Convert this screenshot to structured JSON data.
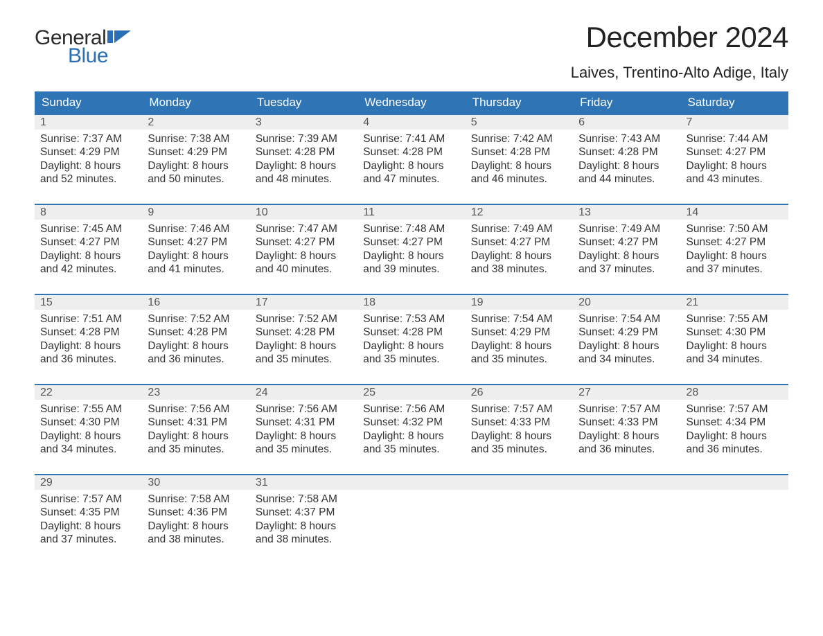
{
  "logo": {
    "text_general": "General",
    "text_blue": "Blue",
    "flag_color": "#2a6fb5"
  },
  "header": {
    "month_title": "December 2024",
    "location": "Laives, Trentino-Alto Adige, Italy"
  },
  "colors": {
    "header_bg": "#2f74b5",
    "header_text": "#ffffff",
    "daynum_bg": "#eeeeee",
    "daynum_border": "#2f74b5",
    "body_text": "#333333",
    "page_bg": "#ffffff"
  },
  "typography": {
    "month_title_fontsize": 42,
    "location_fontsize": 22,
    "header_fontsize": 17,
    "daynum_fontsize": 16,
    "body_fontsize": 15.5,
    "logo_fontsize": 30
  },
  "weekdays": [
    "Sunday",
    "Monday",
    "Tuesday",
    "Wednesday",
    "Thursday",
    "Friday",
    "Saturday"
  ],
  "labels": {
    "sunrise": "Sunrise:",
    "sunset": "Sunset:",
    "daylight": "Daylight:"
  },
  "weeks": [
    [
      {
        "day": "1",
        "sunrise": "7:37 AM",
        "sunset": "4:29 PM",
        "daylight1": "8 hours",
        "daylight2": "and 52 minutes."
      },
      {
        "day": "2",
        "sunrise": "7:38 AM",
        "sunset": "4:29 PM",
        "daylight1": "8 hours",
        "daylight2": "and 50 minutes."
      },
      {
        "day": "3",
        "sunrise": "7:39 AM",
        "sunset": "4:28 PM",
        "daylight1": "8 hours",
        "daylight2": "and 48 minutes."
      },
      {
        "day": "4",
        "sunrise": "7:41 AM",
        "sunset": "4:28 PM",
        "daylight1": "8 hours",
        "daylight2": "and 47 minutes."
      },
      {
        "day": "5",
        "sunrise": "7:42 AM",
        "sunset": "4:28 PM",
        "daylight1": "8 hours",
        "daylight2": "and 46 minutes."
      },
      {
        "day": "6",
        "sunrise": "7:43 AM",
        "sunset": "4:28 PM",
        "daylight1": "8 hours",
        "daylight2": "and 44 minutes."
      },
      {
        "day": "7",
        "sunrise": "7:44 AM",
        "sunset": "4:27 PM",
        "daylight1": "8 hours",
        "daylight2": "and 43 minutes."
      }
    ],
    [
      {
        "day": "8",
        "sunrise": "7:45 AM",
        "sunset": "4:27 PM",
        "daylight1": "8 hours",
        "daylight2": "and 42 minutes."
      },
      {
        "day": "9",
        "sunrise": "7:46 AM",
        "sunset": "4:27 PM",
        "daylight1": "8 hours",
        "daylight2": "and 41 minutes."
      },
      {
        "day": "10",
        "sunrise": "7:47 AM",
        "sunset": "4:27 PM",
        "daylight1": "8 hours",
        "daylight2": "and 40 minutes."
      },
      {
        "day": "11",
        "sunrise": "7:48 AM",
        "sunset": "4:27 PM",
        "daylight1": "8 hours",
        "daylight2": "and 39 minutes."
      },
      {
        "day": "12",
        "sunrise": "7:49 AM",
        "sunset": "4:27 PM",
        "daylight1": "8 hours",
        "daylight2": "and 38 minutes."
      },
      {
        "day": "13",
        "sunrise": "7:49 AM",
        "sunset": "4:27 PM",
        "daylight1": "8 hours",
        "daylight2": "and 37 minutes."
      },
      {
        "day": "14",
        "sunrise": "7:50 AM",
        "sunset": "4:27 PM",
        "daylight1": "8 hours",
        "daylight2": "and 37 minutes."
      }
    ],
    [
      {
        "day": "15",
        "sunrise": "7:51 AM",
        "sunset": "4:28 PM",
        "daylight1": "8 hours",
        "daylight2": "and 36 minutes."
      },
      {
        "day": "16",
        "sunrise": "7:52 AM",
        "sunset": "4:28 PM",
        "daylight1": "8 hours",
        "daylight2": "and 36 minutes."
      },
      {
        "day": "17",
        "sunrise": "7:52 AM",
        "sunset": "4:28 PM",
        "daylight1": "8 hours",
        "daylight2": "and 35 minutes."
      },
      {
        "day": "18",
        "sunrise": "7:53 AM",
        "sunset": "4:28 PM",
        "daylight1": "8 hours",
        "daylight2": "and 35 minutes."
      },
      {
        "day": "19",
        "sunrise": "7:54 AM",
        "sunset": "4:29 PM",
        "daylight1": "8 hours",
        "daylight2": "and 35 minutes."
      },
      {
        "day": "20",
        "sunrise": "7:54 AM",
        "sunset": "4:29 PM",
        "daylight1": "8 hours",
        "daylight2": "and 34 minutes."
      },
      {
        "day": "21",
        "sunrise": "7:55 AM",
        "sunset": "4:30 PM",
        "daylight1": "8 hours",
        "daylight2": "and 34 minutes."
      }
    ],
    [
      {
        "day": "22",
        "sunrise": "7:55 AM",
        "sunset": "4:30 PM",
        "daylight1": "8 hours",
        "daylight2": "and 34 minutes."
      },
      {
        "day": "23",
        "sunrise": "7:56 AM",
        "sunset": "4:31 PM",
        "daylight1": "8 hours",
        "daylight2": "and 35 minutes."
      },
      {
        "day": "24",
        "sunrise": "7:56 AM",
        "sunset": "4:31 PM",
        "daylight1": "8 hours",
        "daylight2": "and 35 minutes."
      },
      {
        "day": "25",
        "sunrise": "7:56 AM",
        "sunset": "4:32 PM",
        "daylight1": "8 hours",
        "daylight2": "and 35 minutes."
      },
      {
        "day": "26",
        "sunrise": "7:57 AM",
        "sunset": "4:33 PM",
        "daylight1": "8 hours",
        "daylight2": "and 35 minutes."
      },
      {
        "day": "27",
        "sunrise": "7:57 AM",
        "sunset": "4:33 PM",
        "daylight1": "8 hours",
        "daylight2": "and 36 minutes."
      },
      {
        "day": "28",
        "sunrise": "7:57 AM",
        "sunset": "4:34 PM",
        "daylight1": "8 hours",
        "daylight2": "and 36 minutes."
      }
    ],
    [
      {
        "day": "29",
        "sunrise": "7:57 AM",
        "sunset": "4:35 PM",
        "daylight1": "8 hours",
        "daylight2": "and 37 minutes."
      },
      {
        "day": "30",
        "sunrise": "7:58 AM",
        "sunset": "4:36 PM",
        "daylight1": "8 hours",
        "daylight2": "and 38 minutes."
      },
      {
        "day": "31",
        "sunrise": "7:58 AM",
        "sunset": "4:37 PM",
        "daylight1": "8 hours",
        "daylight2": "and 38 minutes."
      },
      null,
      null,
      null,
      null
    ]
  ]
}
